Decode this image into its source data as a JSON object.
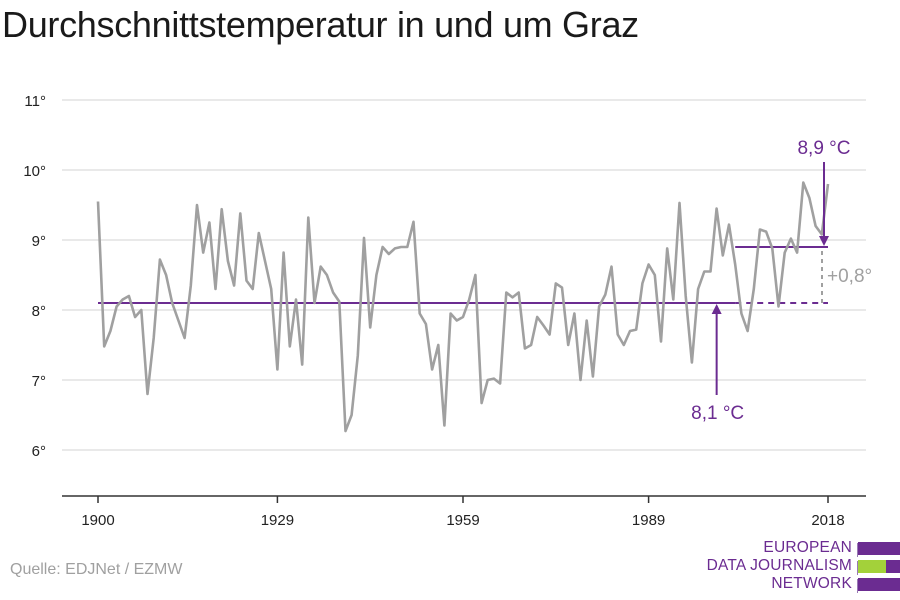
{
  "title": "Durchschnittstemperatur in und um Graz",
  "source": "Quelle: EDJNet / EZMW",
  "logo": {
    "lines": [
      "EUROPEAN",
      "DATA JOURNALISM",
      "NETWORK"
    ],
    "colors": {
      "purple": "#6b2c91",
      "green": "#a3d13a"
    }
  },
  "colors": {
    "series": "#a0a0a0",
    "mean": "#6b2c91",
    "delta": "#a0a0a0",
    "grid": "#dcdcdc",
    "axis": "#333333"
  },
  "chart_data": {
    "type": "line",
    "title": "Durchschnittstemperatur in und um Graz",
    "xlabel": "",
    "ylabel": "",
    "xlim": [
      1900,
      2018
    ],
    "ylim": [
      5.3,
      11.1
    ],
    "grid": true,
    "x_ticks": [
      1900,
      1929,
      1959,
      1989,
      2018
    ],
    "x_tick_labels": [
      "1900",
      "1929",
      "1959",
      "1989",
      "2018"
    ],
    "y_ticks": [
      6,
      7,
      8,
      9,
      10,
      11
    ],
    "y_tick_labels": [
      "6°",
      "7°",
      "8°",
      "9°",
      "10°",
      "11°"
    ],
    "series": [
      {
        "x": [
          1900,
          1901,
          1902,
          1903,
          1904,
          1905,
          1906,
          1907,
          1908,
          1909,
          1910,
          1911,
          1912,
          1913,
          1914,
          1915,
          1916,
          1917,
          1918,
          1919,
          1920,
          1921,
          1922,
          1923,
          1924,
          1925,
          1926,
          1927,
          1928,
          1929,
          1930,
          1931,
          1932,
          1933,
          1934,
          1935,
          1936,
          1937,
          1938,
          1939,
          1940,
          1941,
          1942,
          1943,
          1944,
          1945,
          1946,
          1947,
          1948,
          1949,
          1950,
          1951,
          1952,
          1953,
          1954,
          1955,
          1956,
          1957,
          1958,
          1959,
          1960,
          1961,
          1962,
          1963,
          1964,
          1965,
          1966,
          1967,
          1968,
          1969,
          1970,
          1971,
          1972,
          1973,
          1974,
          1975,
          1976,
          1977,
          1978,
          1979,
          1980,
          1981,
          1982,
          1983,
          1984,
          1985,
          1986,
          1987,
          1988,
          1989,
          1990,
          1991,
          1992,
          1993,
          1994,
          1995,
          1996,
          1997,
          1998,
          1999,
          2000,
          2001,
          2002,
          2003,
          2004,
          2005,
          2006,
          2007,
          2008,
          2009,
          2010,
          2011,
          2012,
          2013,
          2014,
          2015,
          2016,
          2017,
          2018
        ],
        "values": [
          9.55,
          7.48,
          7.7,
          8.05,
          8.15,
          8.2,
          7.9,
          8.0,
          6.8,
          7.6,
          8.72,
          8.5,
          8.1,
          7.85,
          7.6,
          8.35,
          9.5,
          8.82,
          9.25,
          8.3,
          9.44,
          8.7,
          8.35,
          9.38,
          8.42,
          8.3,
          9.1,
          8.7,
          8.3,
          7.15,
          8.82,
          7.48,
          8.15,
          7.22,
          9.32,
          8.1,
          8.62,
          8.5,
          8.25,
          8.12,
          6.27,
          6.5,
          7.35,
          9.03,
          7.75,
          8.5,
          8.9,
          8.8,
          8.88,
          8.9,
          8.9,
          9.26,
          7.95,
          7.8,
          7.15,
          7.5,
          6.35,
          7.95,
          7.85,
          7.9,
          8.15,
          8.5,
          6.67,
          7.0,
          7.02,
          6.95,
          8.25,
          8.18,
          8.25,
          7.45,
          7.5,
          7.9,
          7.78,
          7.65,
          8.38,
          8.32,
          7.5,
          7.95,
          7.0,
          7.85,
          7.05,
          8.05,
          8.22,
          8.62,
          7.65,
          7.5,
          7.7,
          7.72,
          8.38,
          8.65,
          8.5,
          7.55,
          8.88,
          8.15,
          9.53,
          8.2,
          7.25,
          8.3,
          8.55,
          8.55,
          9.45,
          8.78,
          9.22,
          8.65,
          7.95,
          7.7,
          8.3,
          9.15,
          9.12,
          8.88,
          8.05,
          8.82,
          9.02,
          8.82,
          9.82,
          9.6,
          9.2,
          9.08,
          9.8
        ]
      }
    ],
    "reference_lines": [
      {
        "value": 8.1,
        "x_from": 1900,
        "x_to": 2018,
        "style": "solid",
        "dashed_from": 2003,
        "label": "8,1 °C"
      },
      {
        "value": 8.9,
        "x_from": 2003,
        "x_to": 2018,
        "style": "solid",
        "label": "8,9 °C"
      }
    ],
    "difference_label": "+0,8°"
  }
}
